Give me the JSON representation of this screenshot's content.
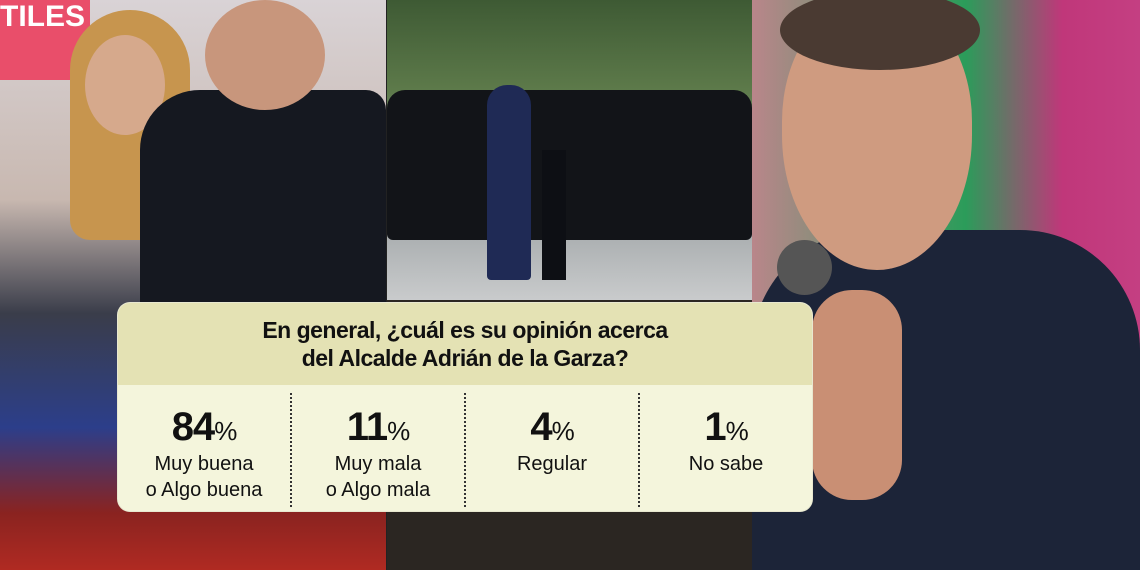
{
  "photo_sign_text": "TILES",
  "poll": {
    "question_line1": "En general, ¿cuál es su opinión acerca",
    "question_line2": "del Alcalde Adrián de la Garza?",
    "results": [
      {
        "value": "84",
        "unit": "%",
        "label_line1": "Muy buena",
        "label_line2": "o Algo buena"
      },
      {
        "value": "11",
        "unit": "%",
        "label_line1": "Muy mala",
        "label_line2": "o Algo mala"
      },
      {
        "value": "4",
        "unit": "%",
        "label_line1": "Regular",
        "label_line2": ""
      },
      {
        "value": "1",
        "unit": "%",
        "label_line1": "No sabe",
        "label_line2": ""
      }
    ],
    "colors": {
      "header": "#e4e2b4",
      "body": "#f4f5dc"
    }
  }
}
